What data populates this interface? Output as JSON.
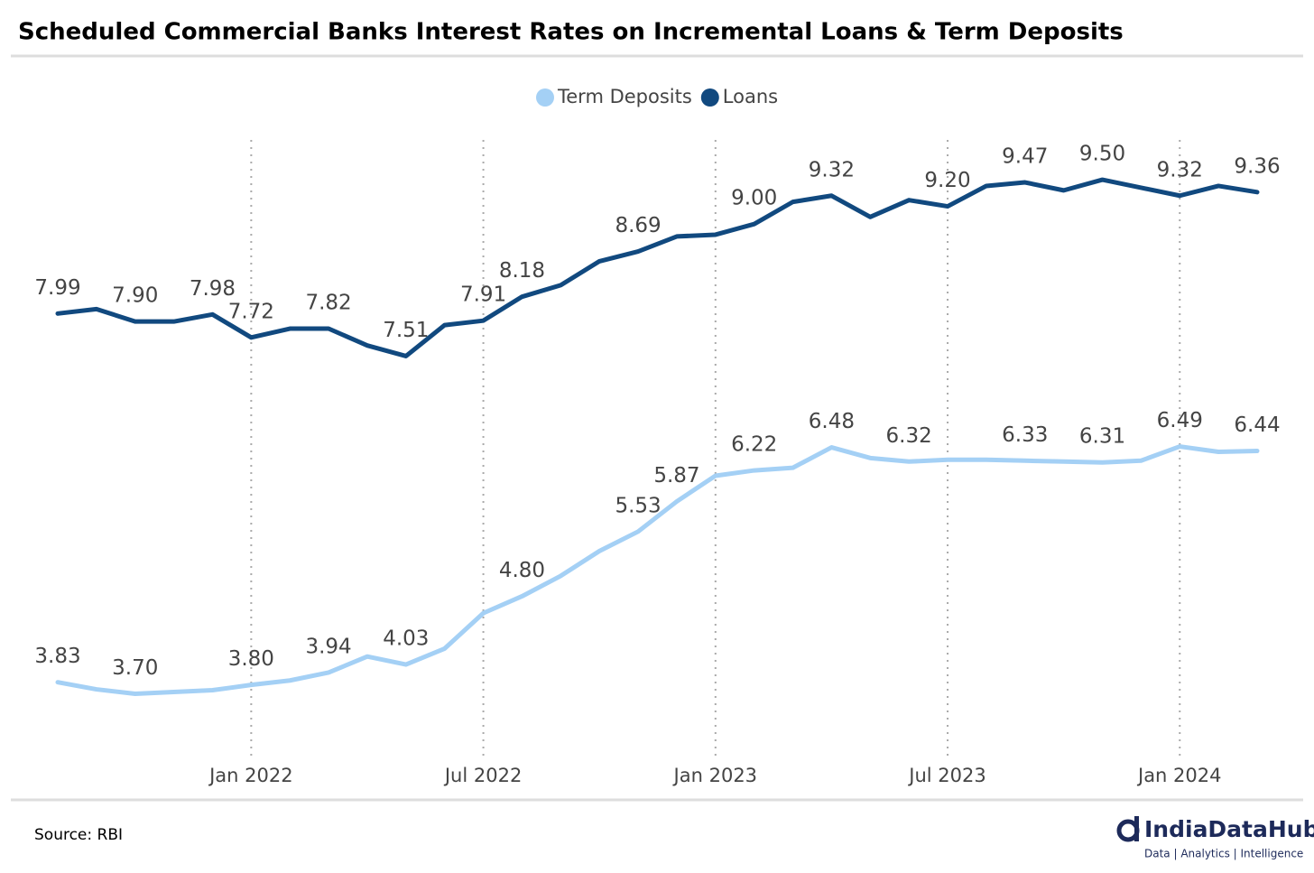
{
  "chart_data": {
    "type": "line",
    "title": "Scheduled Commercial Banks Interest Rates on Incremental Loans & Term Deposits",
    "source": "Source: RBI",
    "brand": "IndiaDataHub",
    "brand_tagline": "Data | Analytics | Intelligence",
    "x": [
      "2021-08",
      "2021-09",
      "2021-10",
      "2021-11",
      "2021-12",
      "2022-01",
      "2022-02",
      "2022-03",
      "2022-04",
      "2022-05",
      "2022-06",
      "2022-07",
      "2022-08",
      "2022-09",
      "2022-10",
      "2022-11",
      "2022-12",
      "2023-01",
      "2023-02",
      "2023-03",
      "2023-04",
      "2023-05",
      "2023-06",
      "2023-07",
      "2023-08",
      "2023-09",
      "2023-10",
      "2023-11",
      "2023-12",
      "2024-01",
      "2024-02",
      "2024-03"
    ],
    "xticks": [
      {
        "value": "2022-01",
        "label": "Jan 2022"
      },
      {
        "value": "2022-07",
        "label": "Jul 2022"
      },
      {
        "value": "2023-01",
        "label": "Jan 2023"
      },
      {
        "value": "2023-07",
        "label": "Jul 2023"
      },
      {
        "value": "2024-01",
        "label": "Jan 2024"
      }
    ],
    "ylim": [
      2.9,
      10
    ],
    "grid": true,
    "legend": "top",
    "series": [
      {
        "name": "Term Deposits",
        "color": "#a4d0f5",
        "values": [
          3.83,
          3.75,
          3.7,
          3.72,
          3.74,
          3.8,
          3.85,
          3.94,
          4.12,
          4.03,
          4.21,
          4.61,
          4.8,
          5.03,
          5.31,
          5.53,
          5.87,
          6.16,
          6.22,
          6.25,
          6.48,
          6.36,
          6.32,
          6.34,
          6.34,
          6.33,
          6.32,
          6.31,
          6.33,
          6.49,
          6.43,
          6.44
        ],
        "value_labels": [
          "3.83",
          null,
          "3.70",
          null,
          null,
          "3.80",
          null,
          "3.94",
          null,
          "4.03",
          null,
          null,
          "4.80",
          null,
          null,
          "5.53",
          "5.87",
          null,
          "6.22",
          null,
          "6.48",
          null,
          "6.32",
          null,
          null,
          "6.33",
          null,
          "6.31",
          null,
          "6.49",
          null,
          "6.44"
        ]
      },
      {
        "name": "Loans",
        "color": "#11497f",
        "values": [
          7.99,
          8.04,
          7.9,
          7.9,
          7.98,
          7.72,
          7.82,
          7.82,
          7.63,
          7.51,
          7.86,
          7.91,
          8.18,
          8.31,
          8.58,
          8.69,
          8.86,
          8.88,
          9.0,
          9.25,
          9.32,
          9.08,
          9.27,
          9.2,
          9.43,
          9.47,
          9.38,
          9.5,
          9.41,
          9.32,
          9.43,
          9.36
        ],
        "value_labels": [
          "7.99",
          null,
          "7.90",
          null,
          "7.98",
          "7.72",
          null,
          "7.82",
          null,
          "7.51",
          null,
          "7.91",
          "8.18",
          null,
          null,
          "8.69",
          null,
          null,
          "9.00",
          null,
          "9.32",
          null,
          null,
          "9.20",
          null,
          "9.47",
          null,
          "9.50",
          null,
          "9.32",
          null,
          "9.36"
        ]
      }
    ]
  }
}
